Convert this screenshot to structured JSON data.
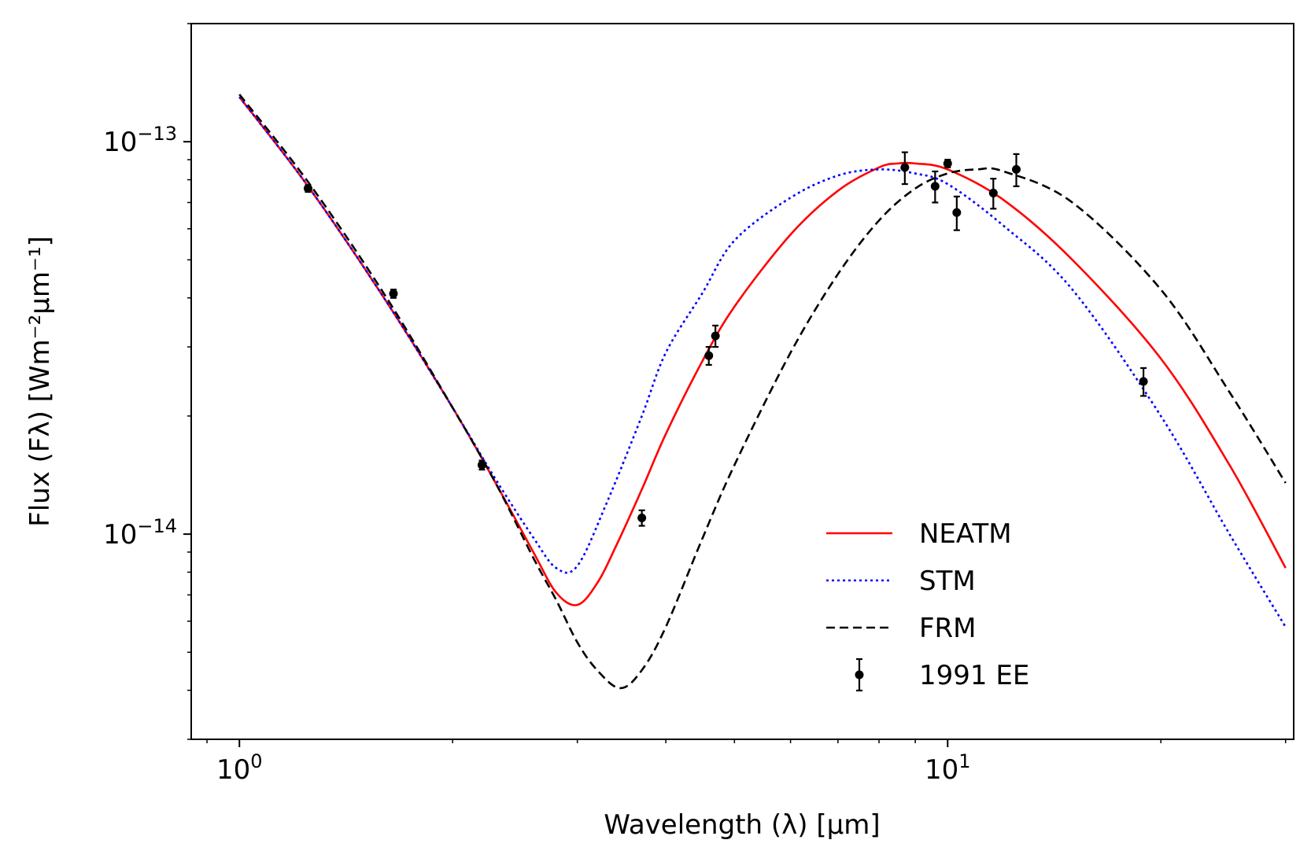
{
  "chart_data": {
    "type": "line",
    "title": "",
    "xlabel": "Wavelength (λ) [μm]",
    "ylabel": "Flux (Fλ) [Wm⁻²μm⁻¹]",
    "xscale": "log",
    "yscale": "log",
    "xlim": [
      0.855,
      30.8
    ],
    "ylim": [
      3e-15,
      2e-13
    ],
    "x_ticks": [
      {
        "value": 1,
        "base": "10",
        "exp": "0"
      },
      {
        "value": 10,
        "base": "10",
        "exp": "1"
      }
    ],
    "y_ticks": [
      {
        "value": 1e-14,
        "base": "10",
        "exp": "−14"
      },
      {
        "value": 1e-13,
        "base": "10",
        "exp": "−13"
      }
    ],
    "grid": false,
    "legend_position": "lower-right",
    "series": [
      {
        "name": "NEATM",
        "style": "solid",
        "color": "#ff0000",
        "x": [
          1.0,
          1.25,
          1.6,
          2.0,
          2.3,
          2.6,
          2.8,
          3.0,
          3.2,
          3.4,
          3.7,
          4.0,
          4.5,
          5.0,
          6.0,
          7.0,
          8.0,
          8.5,
          9.0,
          10.0,
          12.0,
          15.0,
          20.0,
          25.0,
          30.0
        ],
        "y": [
          1.3e-13,
          7.7e-14,
          4e-14,
          2.1e-14,
          1.35e-14,
          9e-15,
          7.1e-15,
          6.6e-15,
          7.5e-15,
          9.3e-15,
          1.3e-14,
          1.8e-14,
          2.75e-14,
          3.8e-14,
          5.8e-14,
          7.5e-14,
          8.6e-14,
          8.8e-14,
          8.8e-14,
          8.5e-14,
          7.1e-14,
          5e-14,
          2.8e-14,
          1.5e-14,
          8.2e-15
        ]
      },
      {
        "name": "STM",
        "style": "dotted",
        "color": "#0000ff",
        "x": [
          1.0,
          1.25,
          1.6,
          2.0,
          2.3,
          2.6,
          2.8,
          3.0,
          3.3,
          3.7,
          4.0,
          4.5,
          5.0,
          6.0,
          7.0,
          8.0,
          9.0,
          10.0,
          12.0,
          15.0,
          20.0,
          25.0,
          30.0
        ],
        "y": [
          1.3e-13,
          7.7e-14,
          4e-14,
          2.1e-14,
          1.38e-14,
          9.8e-15,
          8.2e-15,
          8.3e-15,
          1.2e-14,
          2e-14,
          2.9e-14,
          4.1e-14,
          5.6e-14,
          7.2e-14,
          8.2e-14,
          8.5e-14,
          8.3e-14,
          7.8e-14,
          6.1e-14,
          4.2e-14,
          2e-14,
          1e-14,
          5.8e-15
        ]
      },
      {
        "name": "FRM",
        "style": "dashed",
        "color": "#000000",
        "x": [
          1.0,
          1.25,
          1.6,
          2.0,
          2.3,
          2.6,
          2.8,
          3.0,
          3.2,
          3.45,
          3.7,
          4.0,
          4.5,
          5.0,
          6.0,
          7.0,
          8.0,
          9.0,
          10.0,
          11.0,
          12.0,
          15.0,
          20.0,
          25.0,
          30.0
        ],
        "y": [
          1.32e-13,
          7.9e-14,
          4.1e-14,
          2.1e-14,
          1.35e-14,
          8.7e-15,
          6.8e-15,
          5.3e-15,
          4.5e-15,
          4.05e-15,
          4.5e-15,
          5.8e-15,
          9.7e-15,
          1.5e-14,
          2.9e-14,
          4.6e-14,
          6.3e-14,
          7.6e-14,
          8.3e-14,
          8.5e-14,
          8.4e-14,
          7e-14,
          4.2e-14,
          2.3e-14,
          1.35e-14
        ]
      }
    ],
    "points": {
      "name": "1991 EE",
      "color": "#000000",
      "x": [
        1.25,
        1.65,
        2.2,
        3.7,
        4.6,
        4.7,
        8.7,
        9.6,
        10.0,
        10.3,
        11.6,
        12.5,
        18.9
      ],
      "y": [
        7.6e-14,
        4.1e-14,
        1.5e-14,
        1.1e-14,
        2.85e-14,
        3.2e-14,
        8.6e-14,
        7.7e-14,
        8.8e-14,
        6.6e-14,
        7.4e-14,
        8.5e-14,
        2.45e-14
      ],
      "yerr": [
        1.5e-15,
        1e-15,
        4e-16,
        5e-16,
        1.5e-15,
        2e-15,
        8e-15,
        7e-15,
        2e-15,
        6.5e-15,
        6.5e-15,
        8e-15,
        2e-15
      ]
    }
  }
}
